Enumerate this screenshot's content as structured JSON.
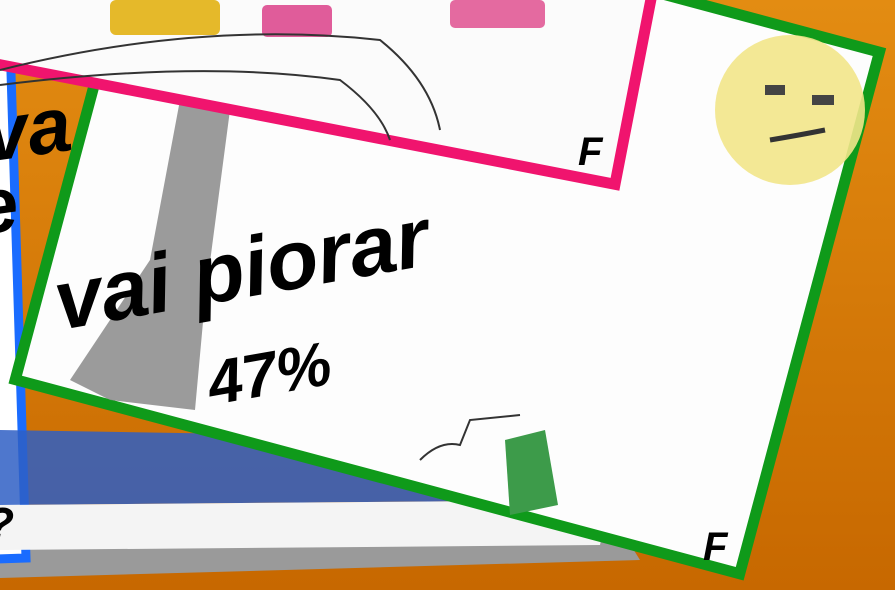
{
  "back_card": {
    "text_lines": [
      "va",
      "e"
    ],
    "corner_mark": "?"
  },
  "top_card": {
    "corner_mark": "F"
  },
  "front_card": {
    "caption": "vai piorar",
    "percentage": "47%",
    "corner_mark": "F"
  }
}
